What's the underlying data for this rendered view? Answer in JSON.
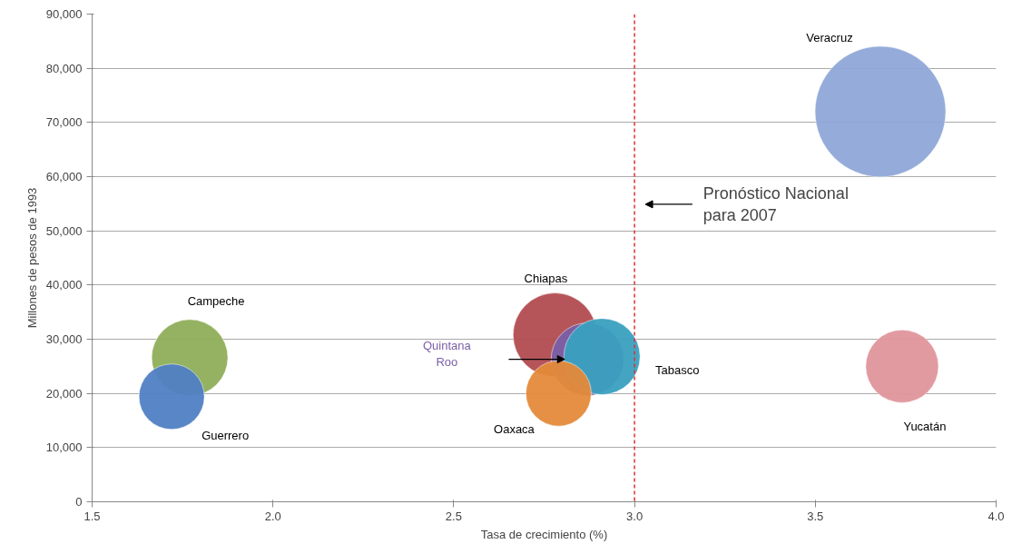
{
  "chart_data": {
    "type": "bubble",
    "xlabel": "Tasa de crecimiento (%)",
    "ylabel": "Millones de pesos de 1993",
    "xlim": [
      1.5,
      4.0
    ],
    "ylim": [
      0,
      90000
    ],
    "xticks": [
      1.5,
      {
        "value": 2.0,
        "label": "2.0"
      },
      2.5,
      {
        "value": 3.0,
        "label": "3.0"
      },
      3.5,
      {
        "value": 4.0,
        "label": "4.0"
      }
    ],
    "yticks": [
      {
        "value": 0,
        "label": "0"
      },
      {
        "value": 10000,
        "label": "10,000"
      },
      {
        "value": 20000,
        "label": "20,000"
      },
      {
        "value": 30000,
        "label": "30,000"
      },
      {
        "value": 40000,
        "label": "40,000"
      },
      {
        "value": 50000,
        "label": "50,000"
      },
      {
        "value": 60000,
        "label": "60,000"
      },
      {
        "value": 70000,
        "label": "70,000"
      },
      {
        "value": 80000,
        "label": "80,000"
      },
      {
        "value": 90000,
        "label": "90,000"
      }
    ],
    "grid": "y",
    "series": [
      {
        "name": "Veracruz",
        "color": "#8fa8d8",
        "x": [
          3.68
        ],
        "values": [
          72000
        ],
        "sizes": [
          1
        ]
      },
      {
        "name": "Campeche",
        "color": "#8fae5a",
        "x": [
          1.77
        ],
        "values": [
          26600
        ],
        "sizes": [
          0.34
        ]
      },
      {
        "name": "Guerrero",
        "color": "#4f7fc4",
        "x": [
          1.72
        ],
        "values": [
          19400
        ],
        "sizes": [
          0.25
        ]
      },
      {
        "name": "Chiapas",
        "color": "#b24c50",
        "x": [
          2.78
        ],
        "values": [
          30800
        ],
        "sizes": [
          0.41
        ]
      },
      {
        "name": "Quintana Roo",
        "color": "#7b5fa8",
        "x": [
          2.87
        ],
        "values": [
          26300
        ],
        "sizes": [
          0.31
        ]
      },
      {
        "name": "Tabasco",
        "color": "#3aa0c0",
        "x": [
          2.91
        ],
        "values": [
          26800
        ],
        "sizes": [
          0.34
        ]
      },
      {
        "name": "Oaxaca",
        "color": "#e48a3a",
        "x": [
          2.79
        ],
        "values": [
          20000
        ],
        "sizes": [
          0.25
        ]
      },
      {
        "name": "Yucatán",
        "color": "#e0959c",
        "x": [
          3.74
        ],
        "values": [
          25000
        ],
        "sizes": [
          0.31
        ]
      }
    ],
    "ref_lines": [
      {
        "axis": "x",
        "value": 3.0,
        "color": "#e03030",
        "line_style": "dashed"
      }
    ],
    "annotations": [
      "Pronóstico Nacional para 2007"
    ]
  }
}
